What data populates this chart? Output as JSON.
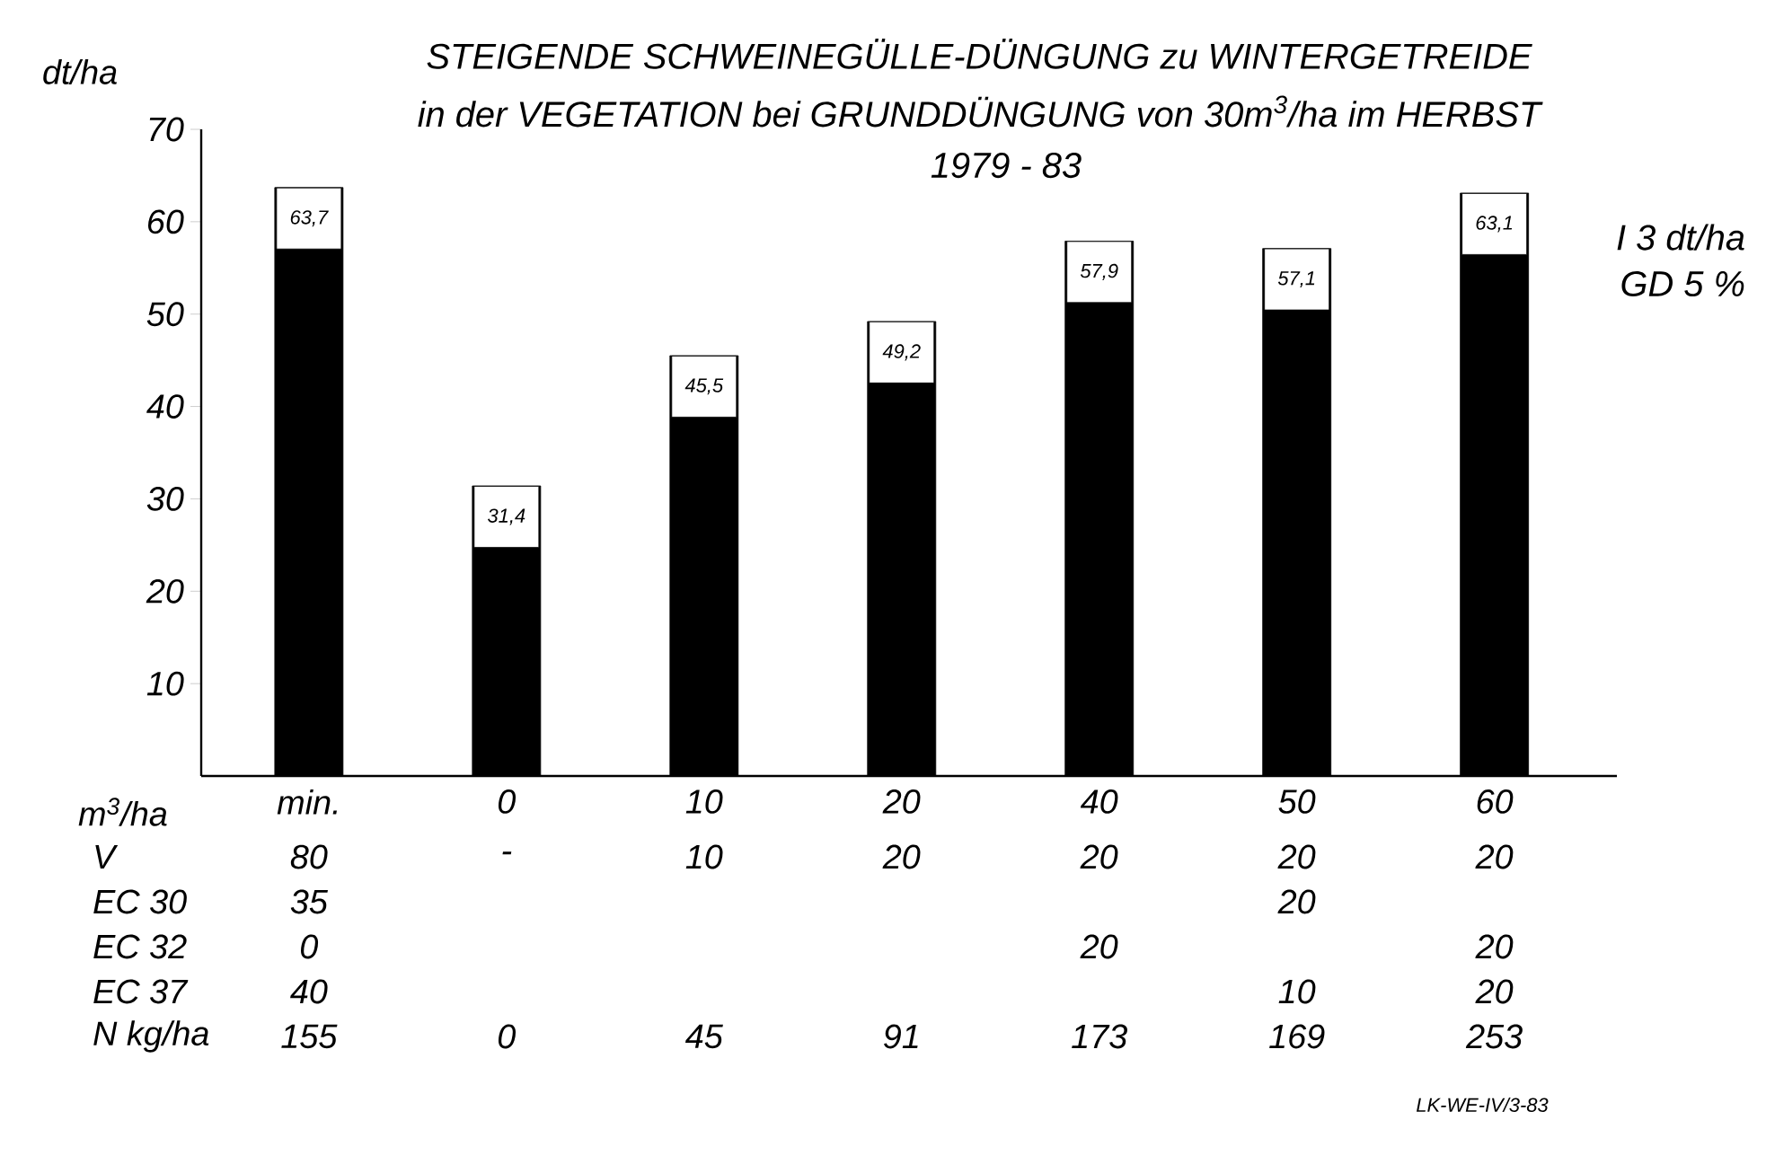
{
  "chart_data": [
    {
      "type": "bar",
      "title": "STEIGENDE SCHWEINEGÜLLE-DÜNGUNG zu WINTERGETREIDE",
      "subtitle": "in der VEGETATION bei GRUNDDÜNGUNG von 30m$^{3}$/ha im HERBST",
      "xlabel": "m$^{3}$/ha",
      "ylabel": "dt/ha",
      "categories": [
        "min.",
        "0",
        "10",
        "20",
        "40",
        "50",
        "60"
      ],
      "values": [
        63.7,
        31.4,
        45.5,
        49.2,
        57.9,
        57.1,
        63.1
      ],
      "value_labels": [
        "63,7",
        "31,4",
        "45,5",
        "49,2",
        "57,9",
        "57,1",
        "63,1"
      ],
      "color": "#000000",
      "ylim": [
        0,
        70
      ],
      "yticks": [
        10,
        20,
        30,
        40,
        50,
        60,
        70
      ],
      "annotations": [
        "1979 - 83",
        "I 3 dt/ha",
        "GD 5 %",
        "LK-WE-IV/3-83"
      ]
    },
    {
      "type": "other",
      "categories": [
        null,
        null,
        null,
        null,
        null,
        null,
        null
      ],
      "y_categories": [
        "V",
        "EC 30",
        "EC 32",
        "EC 37",
        "N kg/ha"
      ],
      "cell_labels": [
        [
          "80",
          "-",
          "10",
          "20",
          "20",
          "20",
          "20"
        ],
        [
          "35",
          null,
          null,
          null,
          null,
          "20",
          null
        ],
        [
          "0",
          null,
          null,
          null,
          "20",
          null,
          "20"
        ],
        [
          "40",
          null,
          null,
          null,
          null,
          "10",
          "20"
        ],
        [
          "155",
          "0",
          "45",
          "91",
          "173",
          "169",
          "253"
        ]
      ]
    }
  ]
}
